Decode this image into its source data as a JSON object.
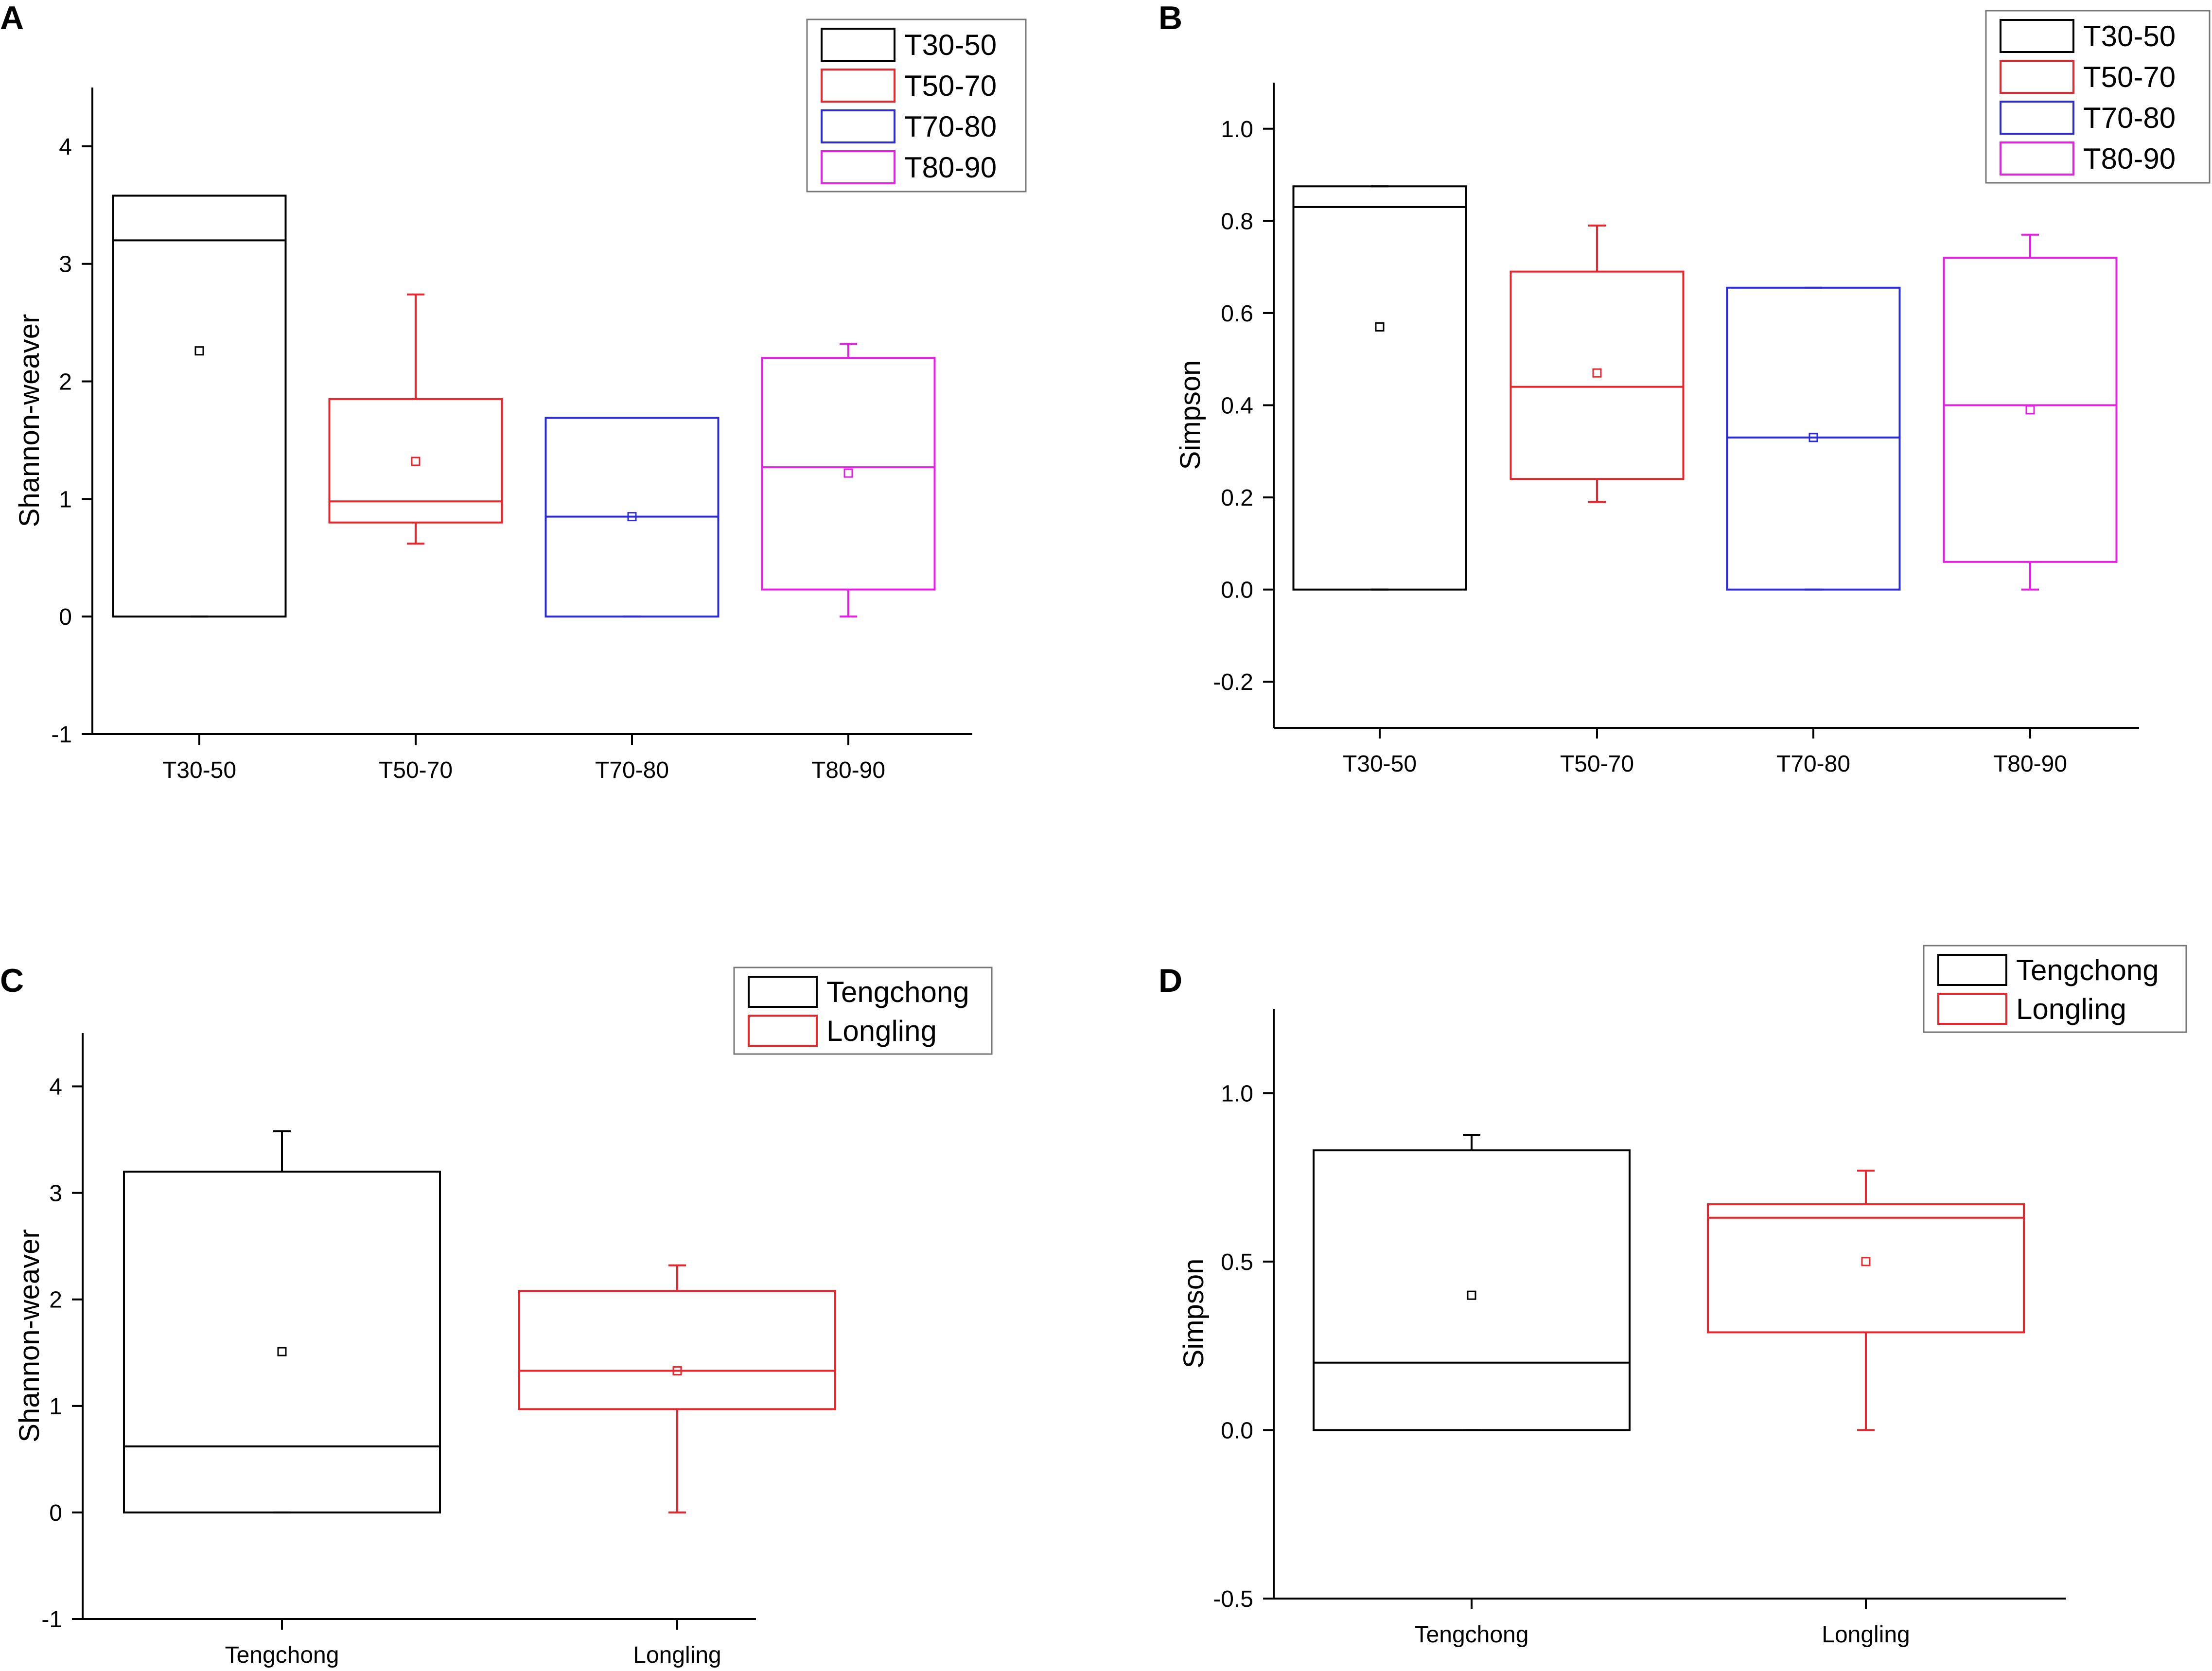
{
  "chart_data": [
    {
      "panel": "A",
      "type": "box",
      "ylabel": "Shannon-weaver",
      "xlabel": "",
      "ylim": [
        -1,
        4.5
      ],
      "yticks": [
        -1,
        0,
        1,
        2,
        3,
        4
      ],
      "categories": [
        "T30-50",
        "T50-70",
        "T70-80",
        "T80-90"
      ],
      "legend": {
        "position": "top-right",
        "entries": [
          {
            "label": "T30-50",
            "color": "#000000"
          },
          {
            "label": "T50-70",
            "color": "#e8262b"
          },
          {
            "label": "T70-80",
            "color": "#2b2bd9"
          },
          {
            "label": "T80-90",
            "color": "#e61ee6"
          }
        ]
      },
      "boxes": [
        {
          "label": "T30-50",
          "color": "#000000",
          "min": 0,
          "q1": 0,
          "median": 3.2,
          "q3": 3.58,
          "max": 3.58,
          "mean": 2.26
        },
        {
          "label": "T50-70",
          "color": "#e8262b",
          "min": 0.62,
          "q1": 0.8,
          "median": 0.98,
          "q3": 1.85,
          "max": 2.74,
          "mean": 1.32
        },
        {
          "label": "T70-80",
          "color": "#2b2bd9",
          "min": 0,
          "q1": 0,
          "median": 0.85,
          "q3": 1.69,
          "max": 1.69,
          "mean": 0.85
        },
        {
          "label": "T80-90",
          "color": "#e61ee6",
          "min": 0,
          "q1": 0.23,
          "median": 1.27,
          "q3": 2.2,
          "max": 2.32,
          "mean": 1.22
        }
      ]
    },
    {
      "panel": "B",
      "type": "box",
      "ylabel": "Simpson",
      "xlabel": "",
      "ylim": [
        -0.3,
        1.1
      ],
      "yticks": [
        -0.2,
        0.0,
        0.2,
        0.4,
        0.6,
        0.8,
        1.0
      ],
      "ytick_labels": [
        "-0.2",
        "0.0",
        "0.2",
        "0.4",
        "0.6",
        "0.8",
        "1.0"
      ],
      "categories": [
        "T30-50",
        "T50-70",
        "T70-80",
        "T80-90"
      ],
      "legend": {
        "position": "top-right",
        "entries": [
          {
            "label": "T30-50",
            "color": "#000000"
          },
          {
            "label": "T50-70",
            "color": "#e8262b"
          },
          {
            "label": "T70-80",
            "color": "#2b2bd9"
          },
          {
            "label": "T80-90",
            "color": "#e61ee6"
          }
        ]
      },
      "boxes": [
        {
          "label": "T30-50",
          "color": "#000000",
          "min": 0,
          "q1": 0,
          "median": 0.83,
          "q3": 0.875,
          "max": 0.875,
          "mean": 0.57
        },
        {
          "label": "T50-70",
          "color": "#e8262b",
          "min": 0.19,
          "q1": 0.24,
          "median": 0.44,
          "q3": 0.69,
          "max": 0.79,
          "mean": 0.47
        },
        {
          "label": "T70-80",
          "color": "#2b2bd9",
          "min": 0,
          "q1": 0,
          "median": 0.33,
          "q3": 0.655,
          "max": 0.655,
          "mean": 0.33
        },
        {
          "label": "T80-90",
          "color": "#e61ee6",
          "min": 0,
          "q1": 0.06,
          "median": 0.4,
          "q3": 0.72,
          "max": 0.77,
          "mean": 0.39
        }
      ]
    },
    {
      "panel": "C",
      "type": "box",
      "ylabel": "Shannon-weaver",
      "xlabel": "",
      "ylim": [
        -1,
        4.5
      ],
      "yticks": [
        -1,
        0,
        1,
        2,
        3,
        4
      ],
      "categories": [
        "Tengchong",
        "Longling"
      ],
      "legend": {
        "position": "top-right",
        "entries": [
          {
            "label": "Tengchong",
            "color": "#000000"
          },
          {
            "label": "Longling",
            "color": "#e8262b"
          }
        ]
      },
      "boxes": [
        {
          "label": "Tengchong",
          "color": "#000000",
          "min": 0,
          "q1": 0,
          "median": 0.62,
          "q3": 3.2,
          "max": 3.58,
          "mean": 1.51
        },
        {
          "label": "Longling",
          "color": "#e8262b",
          "min": 0,
          "q1": 0.97,
          "median": 1.33,
          "q3": 2.08,
          "max": 2.32,
          "mean": 1.33
        }
      ]
    },
    {
      "panel": "D",
      "type": "box",
      "ylabel": "Simpson",
      "xlabel": "",
      "ylim": [
        -0.5,
        1.25
      ],
      "yticks": [
        -0.5,
        0.0,
        0.5,
        1.0
      ],
      "ytick_labels": [
        "-0.5",
        "0.0",
        "0.5",
        "1.0"
      ],
      "categories": [
        "Tengchong",
        "Longling"
      ],
      "legend": {
        "position": "top-right",
        "entries": [
          {
            "label": "Tengchong",
            "color": "#000000"
          },
          {
            "label": "Longling",
            "color": "#e8262b"
          }
        ]
      },
      "boxes": [
        {
          "label": "Tengchong",
          "color": "#000000",
          "min": 0,
          "q1": 0,
          "median": 0.2,
          "q3": 0.83,
          "max": 0.875,
          "mean": 0.4
        },
        {
          "label": "Longling",
          "color": "#e8262b",
          "min": 0,
          "q1": 0.29,
          "median": 0.63,
          "q3": 0.67,
          "max": 0.77,
          "mean": 0.5
        }
      ]
    }
  ]
}
